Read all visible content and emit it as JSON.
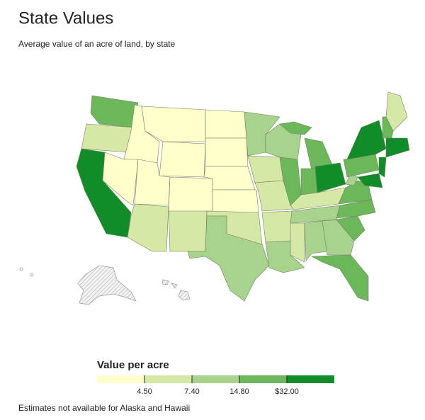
{
  "chart_data": {
    "type": "choropleth",
    "title": "State Values",
    "subtitle": "Average value of an acre of land, by state",
    "legend_title": "Value per acre",
    "note": "Estimates not available for Alaska and Hawaii",
    "values": [
      18,
      6,
      40,
      3,
      3,
      3,
      3,
      6,
      6,
      3,
      3,
      3,
      3,
      3,
      3,
      6,
      10,
      10,
      6,
      6,
      6,
      10,
      10,
      18,
      18,
      18,
      40,
      6,
      10,
      6,
      10,
      10,
      18,
      18,
      18,
      18,
      10,
      18,
      40,
      40,
      40,
      6,
      18,
      40
    ],
    "breaks": [
      {
        "value": 4.5,
        "label": "4.50"
      },
      {
        "value": 7.4,
        "label": "7.40"
      },
      {
        "value": 14.8,
        "label": "14.80"
      },
      {
        "value": 32,
        "label": "$32.00"
      }
    ],
    "colors": [
      "#ffffcc",
      "#d6e8a5",
      "#a8d38c",
      "#6bb75a",
      "#128c28"
    ]
  }
}
